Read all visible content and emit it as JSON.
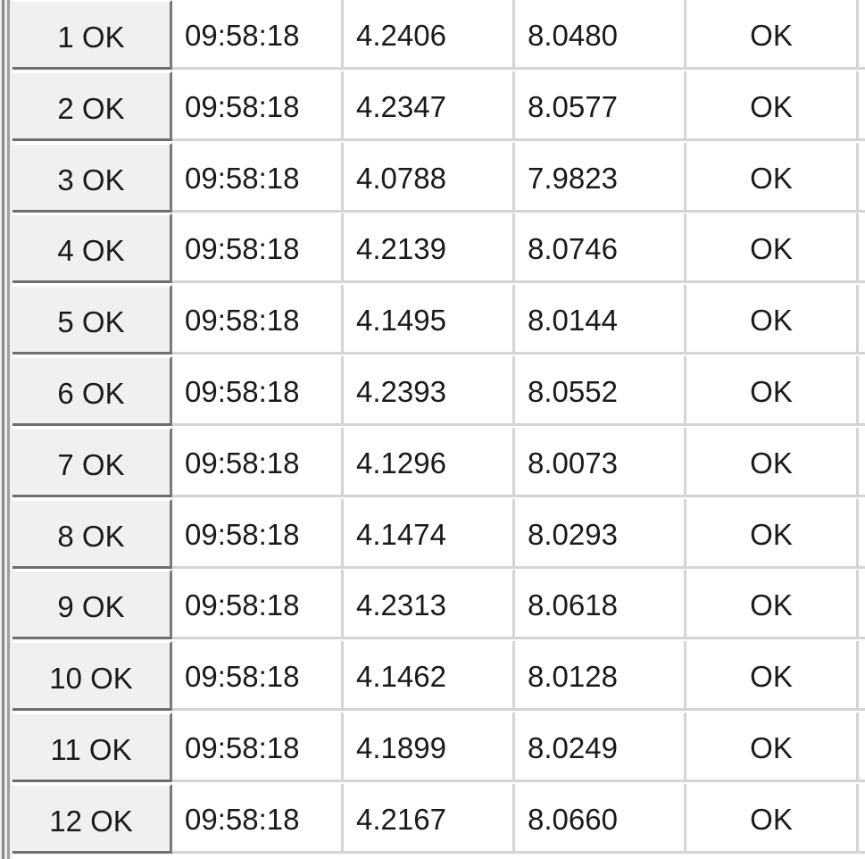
{
  "table": {
    "rows": [
      {
        "header": "1 OK",
        "time": "09:58:18",
        "value1": "4.2406",
        "value2": "8.0480",
        "status": "OK"
      },
      {
        "header": "2 OK",
        "time": "09:58:18",
        "value1": "4.2347",
        "value2": "8.0577",
        "status": "OK"
      },
      {
        "header": "3 OK",
        "time": "09:58:18",
        "value1": "4.0788",
        "value2": "7.9823",
        "status": "OK"
      },
      {
        "header": "4 OK",
        "time": "09:58:18",
        "value1": "4.2139",
        "value2": "8.0746",
        "status": "OK"
      },
      {
        "header": "5 OK",
        "time": "09:58:18",
        "value1": "4.1495",
        "value2": "8.0144",
        "status": "OK"
      },
      {
        "header": "6 OK",
        "time": "09:58:18",
        "value1": "4.2393",
        "value2": "8.0552",
        "status": "OK"
      },
      {
        "header": "7 OK",
        "time": "09:58:18",
        "value1": "4.1296",
        "value2": "8.0073",
        "status": "OK"
      },
      {
        "header": "8 OK",
        "time": "09:58:18",
        "value1": "4.1474",
        "value2": "8.0293",
        "status": "OK"
      },
      {
        "header": "9 OK",
        "time": "09:58:18",
        "value1": "4.2313",
        "value2": "8.0618",
        "status": "OK"
      },
      {
        "header": "10 OK",
        "time": "09:58:18",
        "value1": "4.1462",
        "value2": "8.0128",
        "status": "OK"
      },
      {
        "header": "11 OK",
        "time": "09:58:18",
        "value1": "4.1899",
        "value2": "8.0249",
        "status": "OK"
      },
      {
        "header": "12 OK",
        "time": "09:58:18",
        "value1": "4.2167",
        "value2": "8.0660",
        "status": "OK"
      }
    ]
  }
}
